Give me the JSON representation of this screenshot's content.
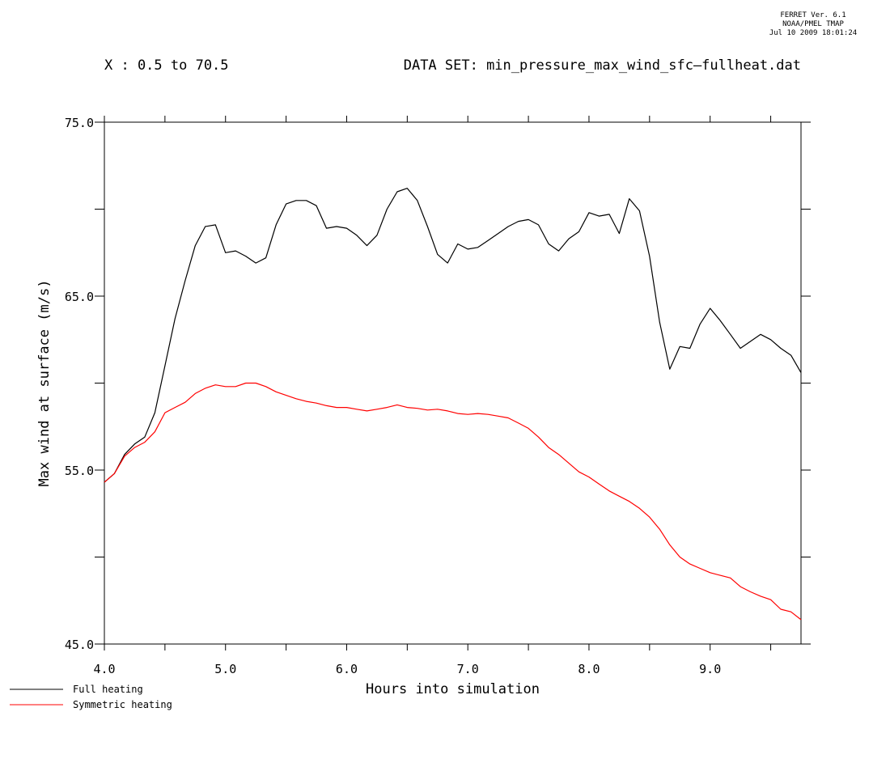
{
  "header": {
    "stamp_line1": "FERRET Ver. 6.1",
    "stamp_line2": "NOAA/PMEL TMAP",
    "stamp_line3": "Jul 10 2009 18:01:24",
    "x_range": "X : 0.5 to 70.5",
    "dataset": "DATA SET: min_pressure_max_wind_sfc—fullheat.dat"
  },
  "chart_data": {
    "type": "line",
    "title": "",
    "xlabel": "Hours into simulation",
    "ylabel": "Max wind at surface (m/s)",
    "xlim": [
      4.0,
      9.75
    ],
    "ylim": [
      45.0,
      75.0
    ],
    "xticks": [
      4.0,
      4.5,
      5.0,
      5.5,
      6.0,
      6.5,
      7.0,
      7.5,
      8.0,
      8.5,
      9.0,
      9.5
    ],
    "xtick_labels": [
      "4.0",
      "5.0",
      "6.0",
      "7.0",
      "8.0",
      "9.0"
    ],
    "xtick_label_values": [
      4.0,
      5.0,
      6.0,
      7.0,
      8.0,
      9.0
    ],
    "yticks": [
      45.0,
      50.0,
      55.0,
      60.0,
      65.0,
      70.0,
      75.0
    ],
    "ytick_labels": [
      "45.0",
      "55.0",
      "65.0",
      "75.0"
    ],
    "ytick_label_values": [
      45.0,
      55.0,
      65.0,
      75.0
    ],
    "grid": false,
    "legend": "bottom-left",
    "series": [
      {
        "name": "Full heating",
        "color": "#000000",
        "points": [
          [
            4.0,
            54.3
          ],
          [
            4.083,
            54.8
          ],
          [
            4.167,
            55.9
          ],
          [
            4.25,
            56.5
          ],
          [
            4.333,
            56.9
          ],
          [
            4.417,
            58.3
          ],
          [
            4.5,
            61.0
          ],
          [
            4.583,
            63.7
          ],
          [
            4.667,
            65.9
          ],
          [
            4.75,
            67.9
          ],
          [
            4.833,
            69.0
          ],
          [
            4.917,
            69.1
          ],
          [
            5.0,
            67.5
          ],
          [
            5.083,
            67.6
          ],
          [
            5.167,
            67.3
          ],
          [
            5.25,
            66.9
          ],
          [
            5.333,
            67.2
          ],
          [
            5.417,
            69.1
          ],
          [
            5.5,
            70.3
          ],
          [
            5.583,
            70.5
          ],
          [
            5.667,
            70.5
          ],
          [
            5.75,
            70.2
          ],
          [
            5.833,
            68.9
          ],
          [
            5.917,
            69.0
          ],
          [
            6.0,
            68.9
          ],
          [
            6.083,
            68.5
          ],
          [
            6.167,
            67.9
          ],
          [
            6.25,
            68.5
          ],
          [
            6.333,
            70.0
          ],
          [
            6.417,
            71.0
          ],
          [
            6.5,
            71.2
          ],
          [
            6.583,
            70.5
          ],
          [
            6.667,
            69.0
          ],
          [
            6.75,
            67.4
          ],
          [
            6.833,
            66.9
          ],
          [
            6.917,
            68.0
          ],
          [
            7.0,
            67.7
          ],
          [
            7.083,
            67.8
          ],
          [
            7.167,
            68.2
          ],
          [
            7.25,
            68.6
          ],
          [
            7.333,
            69.0
          ],
          [
            7.417,
            69.3
          ],
          [
            7.5,
            69.4
          ],
          [
            7.583,
            69.1
          ],
          [
            7.667,
            68.0
          ],
          [
            7.75,
            67.6
          ],
          [
            7.833,
            68.3
          ],
          [
            7.917,
            68.7
          ],
          [
            8.0,
            69.8
          ],
          [
            8.083,
            69.6
          ],
          [
            8.167,
            69.7
          ],
          [
            8.25,
            68.6
          ],
          [
            8.333,
            70.6
          ],
          [
            8.417,
            69.9
          ],
          [
            8.5,
            67.3
          ],
          [
            8.583,
            63.5
          ],
          [
            8.667,
            60.8
          ],
          [
            8.75,
            62.1
          ],
          [
            8.833,
            62.0
          ],
          [
            8.917,
            63.4
          ],
          [
            9.0,
            64.3
          ],
          [
            9.083,
            63.6
          ],
          [
            9.167,
            62.8
          ],
          [
            9.25,
            62.0
          ],
          [
            9.333,
            62.4
          ],
          [
            9.417,
            62.8
          ],
          [
            9.5,
            62.5
          ],
          [
            9.583,
            62.0
          ],
          [
            9.667,
            61.6
          ],
          [
            9.75,
            60.6
          ]
        ]
      },
      {
        "name": "Symmetric heating",
        "color": "#ff0000",
        "points": [
          [
            4.0,
            54.3
          ],
          [
            4.083,
            54.8
          ],
          [
            4.167,
            55.8
          ],
          [
            4.25,
            56.3
          ],
          [
            4.333,
            56.6
          ],
          [
            4.417,
            57.2
          ],
          [
            4.5,
            58.3
          ],
          [
            4.583,
            58.6
          ],
          [
            4.667,
            58.9
          ],
          [
            4.75,
            59.4
          ],
          [
            4.833,
            59.7
          ],
          [
            4.917,
            59.9
          ],
          [
            5.0,
            59.8
          ],
          [
            5.083,
            59.8
          ],
          [
            5.167,
            60.0
          ],
          [
            5.25,
            60.0
          ],
          [
            5.333,
            59.8
          ],
          [
            5.417,
            59.5
          ],
          [
            5.5,
            59.3
          ],
          [
            5.583,
            59.1
          ],
          [
            5.667,
            58.95
          ],
          [
            5.75,
            58.85
          ],
          [
            5.833,
            58.7
          ],
          [
            5.917,
            58.6
          ],
          [
            6.0,
            58.6
          ],
          [
            6.083,
            58.5
          ],
          [
            6.167,
            58.4
          ],
          [
            6.25,
            58.5
          ],
          [
            6.333,
            58.6
          ],
          [
            6.417,
            58.75
          ],
          [
            6.5,
            58.6
          ],
          [
            6.583,
            58.55
          ],
          [
            6.667,
            58.45
          ],
          [
            6.75,
            58.5
          ],
          [
            6.833,
            58.4
          ],
          [
            6.917,
            58.25
          ],
          [
            7.0,
            58.2
          ],
          [
            7.083,
            58.25
          ],
          [
            7.167,
            58.2
          ],
          [
            7.25,
            58.1
          ],
          [
            7.333,
            58.0
          ],
          [
            7.417,
            57.7
          ],
          [
            7.5,
            57.4
          ],
          [
            7.583,
            56.9
          ],
          [
            7.667,
            56.3
          ],
          [
            7.75,
            55.9
          ],
          [
            7.833,
            55.4
          ],
          [
            7.917,
            54.9
          ],
          [
            8.0,
            54.6
          ],
          [
            8.083,
            54.2
          ],
          [
            8.167,
            53.8
          ],
          [
            8.25,
            53.5
          ],
          [
            8.333,
            53.2
          ],
          [
            8.417,
            52.8
          ],
          [
            8.5,
            52.3
          ],
          [
            8.583,
            51.6
          ],
          [
            8.667,
            50.7
          ],
          [
            8.75,
            50.0
          ],
          [
            8.833,
            49.6
          ],
          [
            8.917,
            49.35
          ],
          [
            9.0,
            49.1
          ],
          [
            9.083,
            48.95
          ],
          [
            9.167,
            48.8
          ],
          [
            9.25,
            48.3
          ],
          [
            9.333,
            48.0
          ],
          [
            9.417,
            47.75
          ],
          [
            9.5,
            47.55
          ],
          [
            9.583,
            47.0
          ],
          [
            9.667,
            46.85
          ],
          [
            9.75,
            46.4
          ]
        ]
      }
    ]
  }
}
